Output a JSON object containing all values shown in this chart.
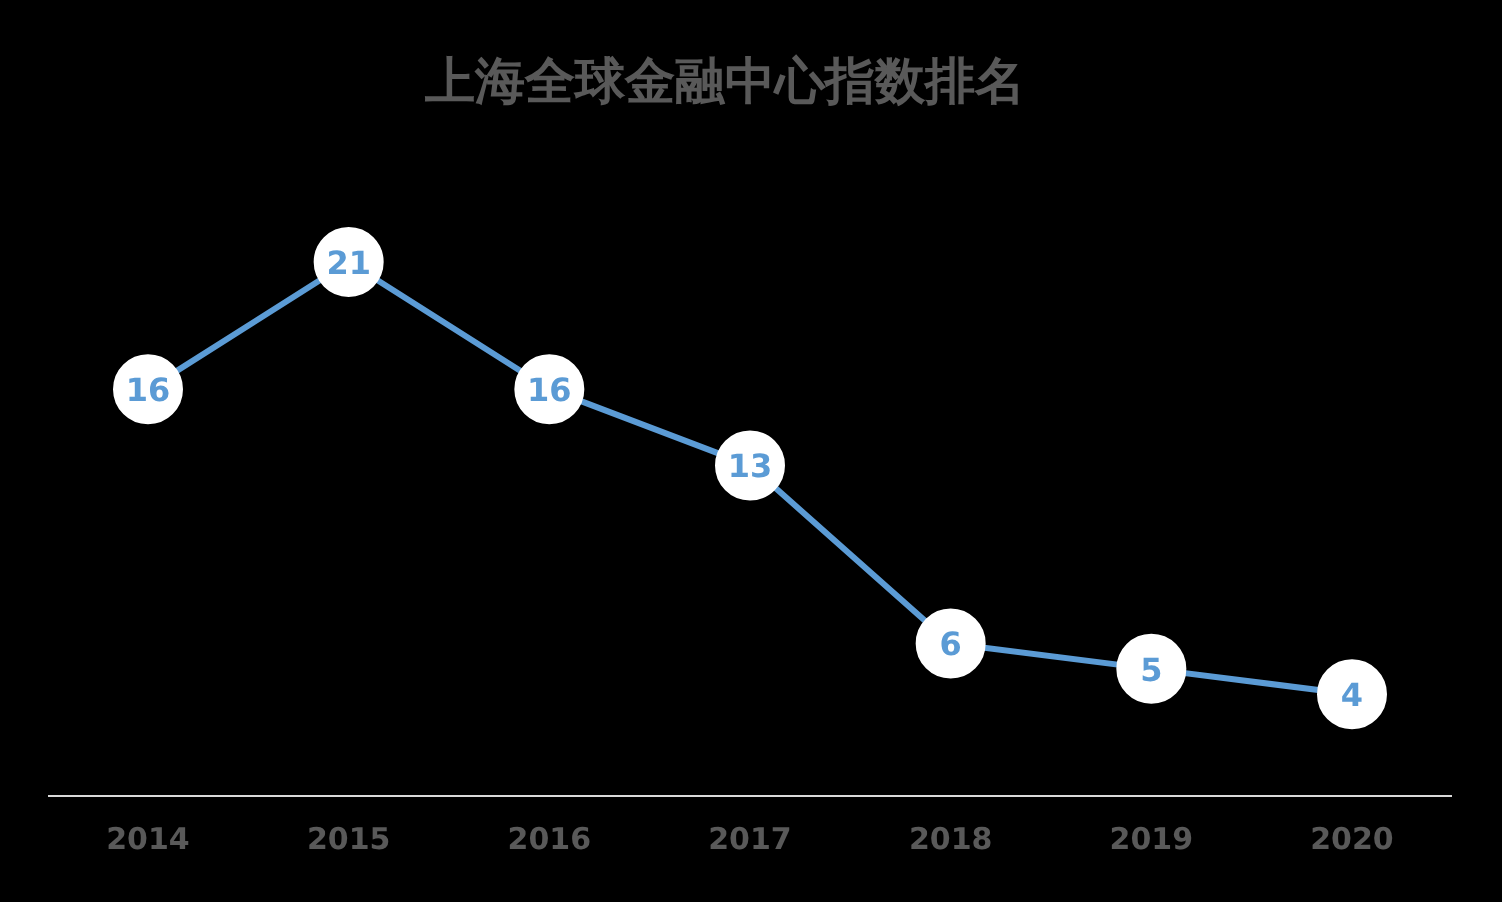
{
  "chart_data": {
    "type": "line",
    "title": "上海全球金融中心指数排名",
    "categories": [
      "2014",
      "2015",
      "2016",
      "2017",
      "2018",
      "2019",
      "2020"
    ],
    "values": [
      16,
      21,
      16,
      13,
      6,
      5,
      4
    ],
    "color": "#5b9bd5",
    "marker": "circle",
    "data_labels": true,
    "grid": false,
    "tick_labels": "x"
  }
}
